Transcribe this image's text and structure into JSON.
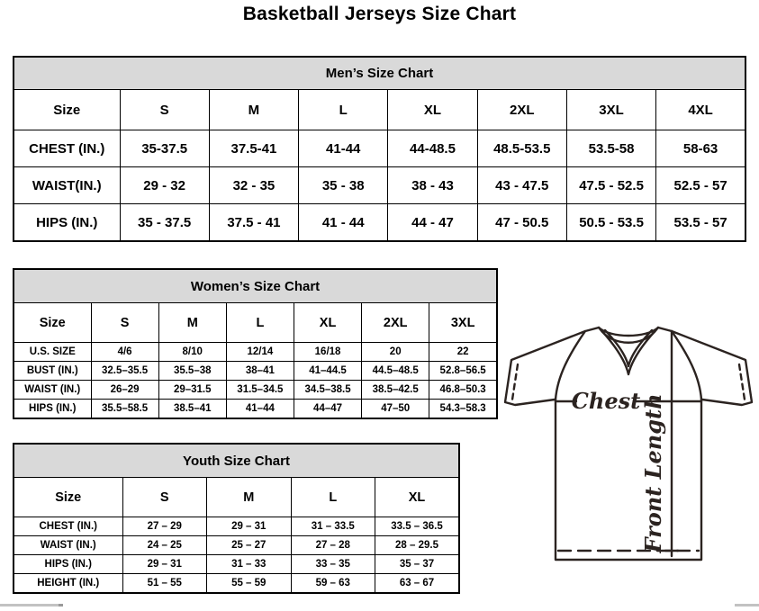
{
  "page_title": "Basketball Jerseys Size Chart",
  "tables": {
    "men": {
      "title": "Men’s Size Chart",
      "header": [
        "Size",
        "S",
        "M",
        "L",
        "XL",
        "2XL",
        "3XL",
        "4XL"
      ],
      "rows": [
        {
          "label": "CHEST (IN.)",
          "values": [
            "35-37.5",
            "37.5-41",
            "41-44",
            "44-48.5",
            "48.5-53.5",
            "53.5-58",
            "58-63"
          ]
        },
        {
          "label": "WAIST(IN.)",
          "values": [
            "29 - 32",
            "32 - 35",
            "35 - 38",
            "38 - 43",
            "43 - 47.5",
            "47.5 - 52.5",
            "52.5 - 57"
          ]
        },
        {
          "label": "HIPS (IN.)",
          "values": [
            "35 - 37.5",
            "37.5 - 41",
            "41 - 44",
            "44 - 47",
            "47 - 50.5",
            "50.5 - 53.5",
            "53.5 - 57"
          ]
        }
      ]
    },
    "women": {
      "title": "Women’s Size Chart",
      "header": [
        "Size",
        "S",
        "M",
        "L",
        "XL",
        "2XL",
        "3XL"
      ],
      "rows": [
        {
          "label": "U.S. SIZE",
          "values": [
            "4/6",
            "8/10",
            "12/14",
            "16/18",
            "20",
            "22"
          ]
        },
        {
          "label": "BUST (IN.)",
          "values": [
            "32.5–35.5",
            "35.5–38",
            "38–41",
            "41–44.5",
            "44.5–48.5",
            "52.8–56.5"
          ]
        },
        {
          "label": "WAIST (IN.)",
          "values": [
            "26–29",
            "29–31.5",
            "31.5–34.5",
            "34.5–38.5",
            "38.5–42.5",
            "46.8–50.3"
          ]
        },
        {
          "label": "HIPS (IN.)",
          "values": [
            "35.5–58.5",
            "38.5–41",
            "41–44",
            "44–47",
            "47–50",
            "54.3–58.3"
          ]
        }
      ]
    },
    "youth": {
      "title": "Youth Size Chart",
      "header": [
        "Size",
        "S",
        "M",
        "L",
        "XL"
      ],
      "rows": [
        {
          "label": "CHEST (IN.)",
          "values": [
            "27 – 29",
            "29 – 31",
            "31 – 33.5",
            "33.5 – 36.5"
          ]
        },
        {
          "label": "WAIST (IN.)",
          "values": [
            "24 – 25",
            "25 – 27",
            "27 – 28",
            "28 – 29.5"
          ]
        },
        {
          "label": "HIPS (IN.)",
          "values": [
            "29 – 31",
            "31 – 33",
            "33 – 35",
            "35 – 37"
          ]
        },
        {
          "label": "HEIGHT (IN.)",
          "values": [
            "51 – 55",
            "55 – 59",
            "59 – 63",
            "63 – 67"
          ]
        }
      ]
    }
  },
  "diagram": {
    "chest_label": "Chest",
    "front_length_label": "Front Length",
    "line_color": "#2b2320"
  }
}
